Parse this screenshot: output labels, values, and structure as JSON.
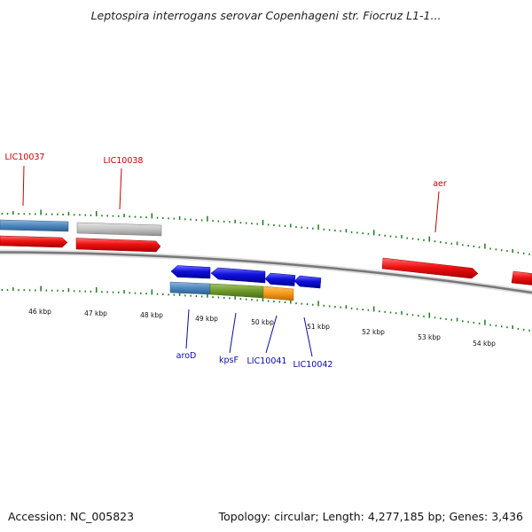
{
  "title": "Leptospira interrogans serovar Copenhageni str. Fiocruz L1-1...",
  "accession": "Accession: NC_005823",
  "stats": "Topology: circular; Length: 4,277,185 bp; Genes: 3,436",
  "colors": {
    "forward_gene": "#ee1111",
    "reverse_gene": "#1010dd",
    "forward_label": "#cc0000",
    "reverse_label": "#0a0aaa",
    "tick": "#1d7a1d",
    "backbone": "#777777",
    "cog_blue": "#4d87bd",
    "cog_grey": "#bdbdbd",
    "cog_green": "#6e9a2a",
    "cog_orange": "#f59a1a"
  },
  "upper_labels": [
    {
      "name": "LIC10037",
      "kbp": 45.5
    },
    {
      "name": "LIC10038",
      "kbp": 47.6
    },
    {
      "name": "aer",
      "kbp": 52.7
    }
  ],
  "lower_labels": [
    {
      "name": "aroD",
      "kbp": 48.4
    },
    {
      "name": "kpsF",
      "kbp": 49.4
    },
    {
      "name": "LIC10041",
      "kbp": 50.2
    },
    {
      "name": "LIC10042",
      "kbp": 50.8
    }
  ],
  "kbp_labels": [
    "46 kbp",
    "47 kbp",
    "48 kbp",
    "49 kbp",
    "50 kbp",
    "51 kbp",
    "52 kbp",
    "53 kbp",
    "54 kbp"
  ]
}
